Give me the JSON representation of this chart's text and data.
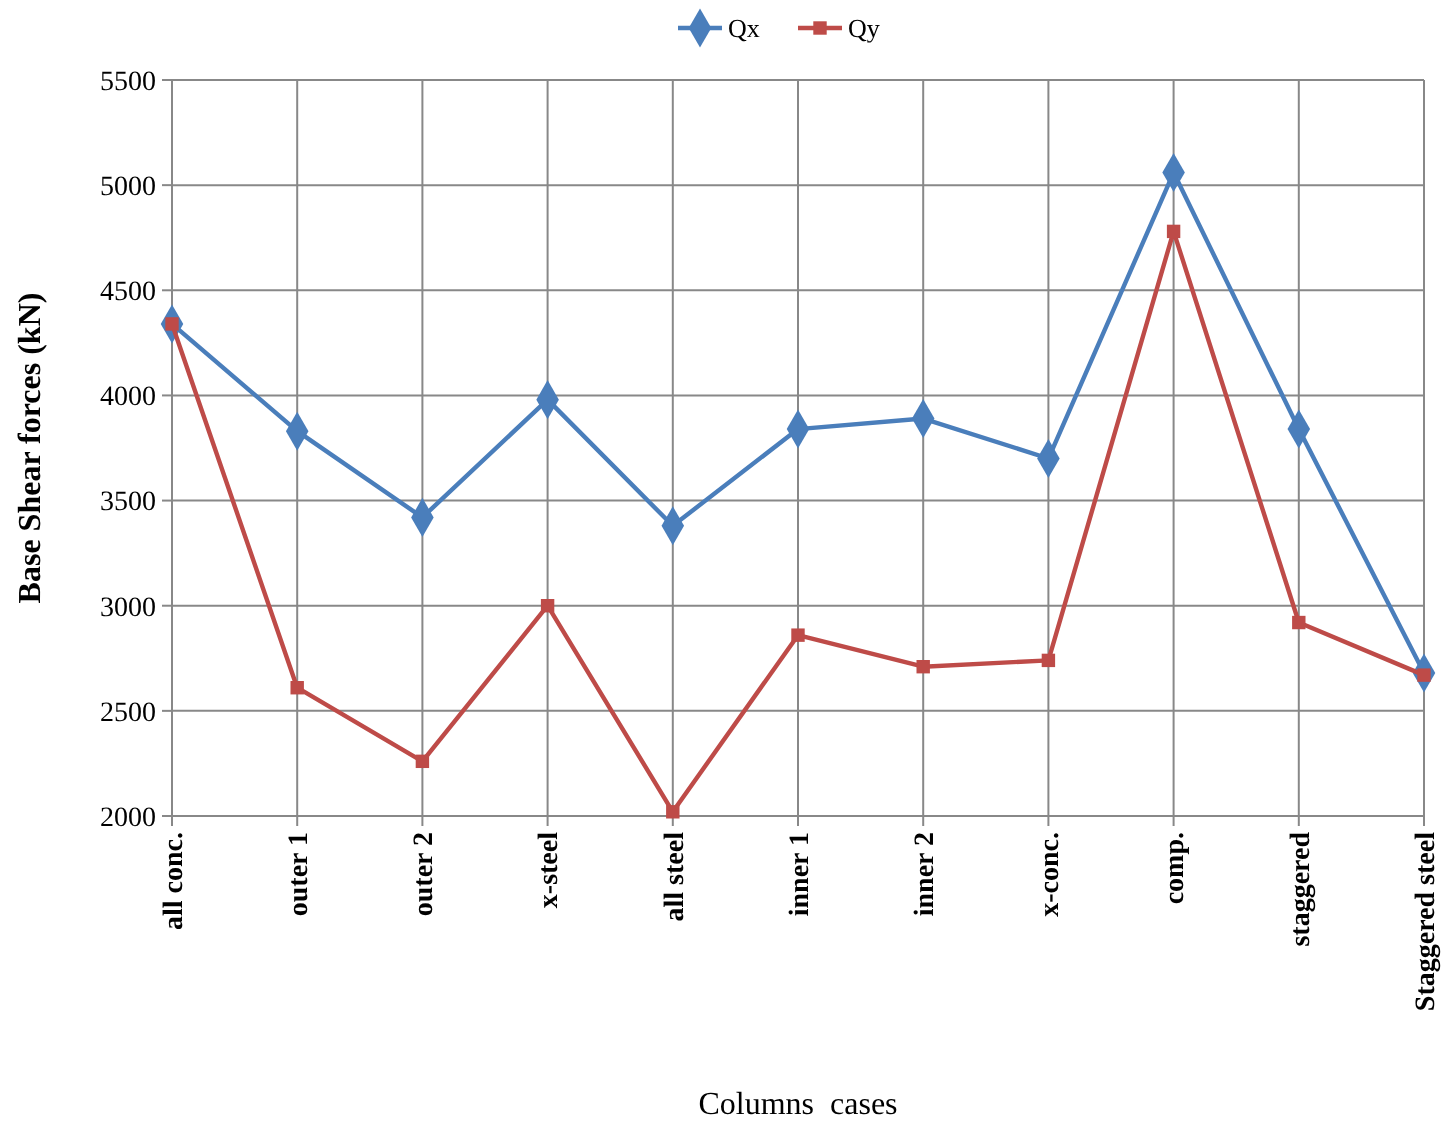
{
  "chart_data": {
    "type": "line",
    "xlabel": "Columns  cases",
    "ylabel": "Base Shear forces (kN)",
    "categories": [
      "all conc.",
      "outer 1",
      "outer 2",
      "x-steel",
      "all steel",
      "inner 1",
      "inner 2",
      "x-conc.",
      "comp.",
      "staggered",
      "Staggered steel"
    ],
    "series": [
      {
        "name": "Qx",
        "color": "#4a7ebb",
        "marker": "diamond",
        "values": [
          4340,
          3830,
          3420,
          3980,
          3380,
          3840,
          3890,
          3700,
          5060,
          3840,
          2680
        ]
      },
      {
        "name": "Qy",
        "color": "#be4b48",
        "marker": "square",
        "values": [
          4340,
          2610,
          2260,
          3000,
          2020,
          2860,
          2710,
          2740,
          4780,
          2920,
          2670
        ]
      }
    ],
    "ylim": [
      2000,
      5500
    ],
    "yticks": [
      2000,
      2500,
      3000,
      3500,
      4000,
      4500,
      5000,
      5500
    ],
    "grid": true,
    "legend": "top"
  }
}
